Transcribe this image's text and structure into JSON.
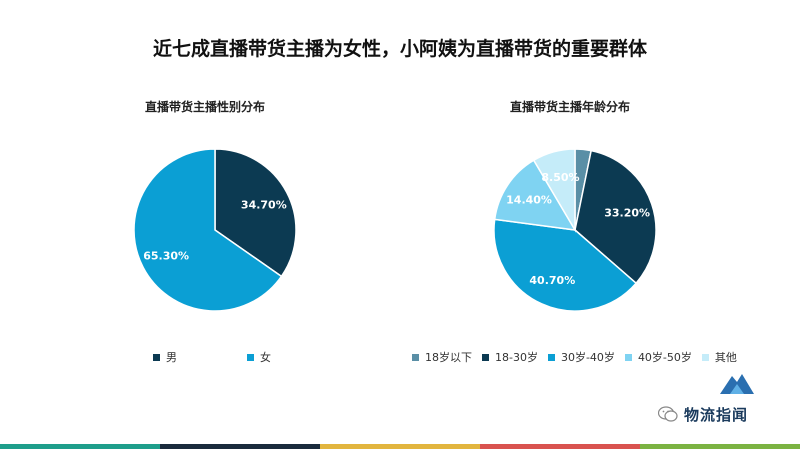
{
  "title": "近七成直播带货主播为女性，小阿姨为直播带货的重要群体",
  "chart_data": [
    {
      "type": "pie",
      "title": "直播带货主播性别分布",
      "categories": [
        "男",
        "女"
      ],
      "values": [
        34.7,
        65.3
      ],
      "labels": [
        "34.70%",
        "65.30%"
      ],
      "colors": [
        "#0c3a52",
        "#0b9fd4"
      ],
      "legend_position": "bottom"
    },
    {
      "type": "pie",
      "title": "直播带货主播年龄分布",
      "categories": [
        "18岁以下",
        "18-30岁",
        "30岁-40岁",
        "40岁-50岁",
        "其他"
      ],
      "values": [
        3.2,
        33.2,
        40.7,
        14.4,
        8.5
      ],
      "labels": [
        "",
        "33.20%",
        "40.70%",
        "14.40%",
        "8.50%"
      ],
      "colors": [
        "#5a8fa6",
        "#0c3a52",
        "#0b9fd4",
        "#7fd3f2",
        "#c5ecf9"
      ],
      "legend_position": "bottom"
    }
  ],
  "watermark": {
    "text": "物流指闻"
  },
  "footer_colors": [
    "#1e9e8b",
    "#1a2b3c",
    "#e2b53e",
    "#d9534f",
    "#7bb342"
  ]
}
